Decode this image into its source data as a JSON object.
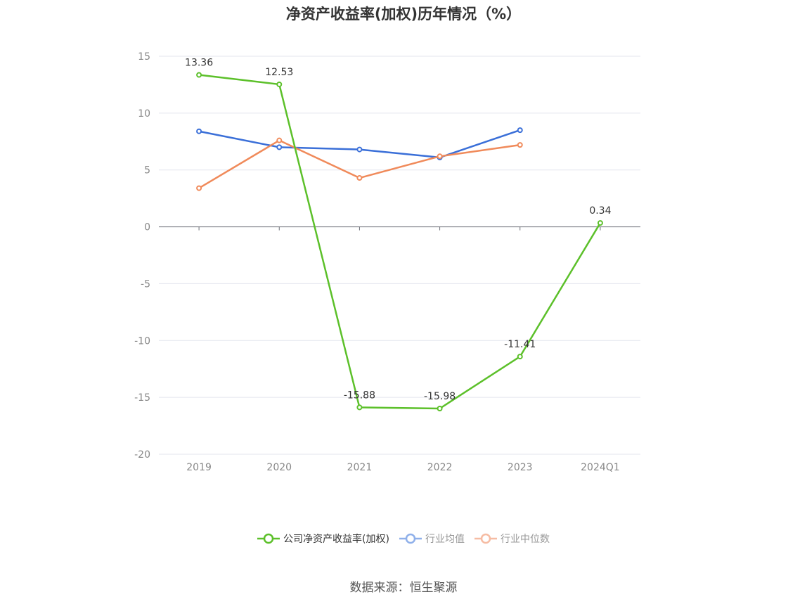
{
  "chart_data": {
    "type": "line",
    "title": "净资产收益率(加权)历年情况（%）",
    "categories": [
      "2019",
      "2020",
      "2021",
      "2022",
      "2023",
      "2024Q1"
    ],
    "ylim": [
      -20,
      15
    ],
    "yticks": [
      15,
      10,
      5,
      0,
      -5,
      -10,
      -15,
      -20
    ],
    "grid": true,
    "legend_position": "bottom",
    "series": [
      {
        "name": "公司净资产收益率(加权)",
        "color": "#5cc02a",
        "labels": true,
        "values": [
          13.36,
          12.53,
          -15.88,
          -15.98,
          -11.41,
          0.34
        ],
        "display": [
          "13.36",
          "12.53",
          "-15.88",
          "-15.98",
          "-11.41",
          "0.34"
        ]
      },
      {
        "name": "行业均值",
        "color": "#3a6fd8",
        "labels": false,
        "values": [
          8.4,
          7.0,
          6.8,
          6.1,
          8.5,
          null
        ]
      },
      {
        "name": "行业中位数",
        "color": "#f08a5a",
        "labels": false,
        "values": [
          3.4,
          7.6,
          4.3,
          6.2,
          7.2,
          null
        ]
      }
    ],
    "legend_colors": [
      "#5cc02a",
      "#8fb0ea",
      "#f6bca3"
    ],
    "source": "数据来源：恒生聚源"
  }
}
